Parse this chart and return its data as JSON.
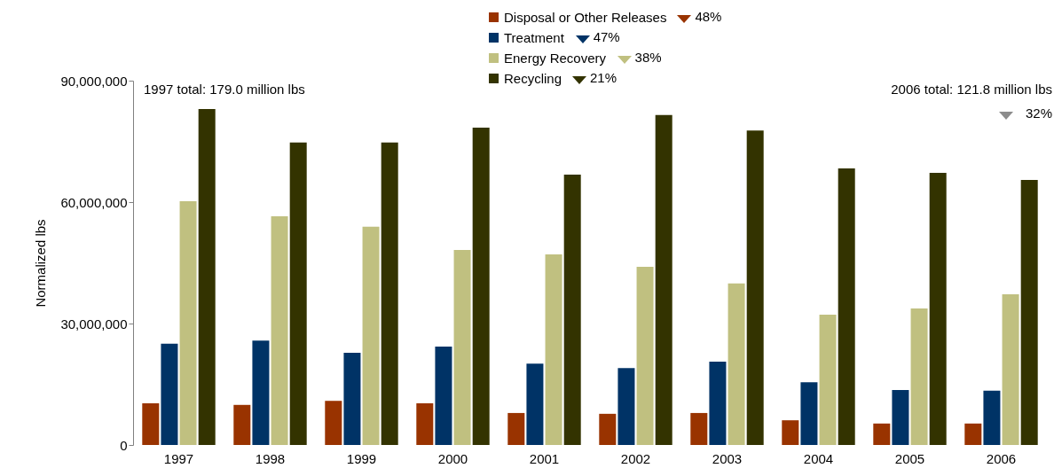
{
  "chart_data": {
    "type": "bar",
    "ylabel": "Normalized lbs",
    "categories": [
      "1997",
      "1998",
      "1999",
      "2000",
      "2001",
      "2002",
      "2003",
      "2004",
      "2005",
      "2006"
    ],
    "series": [
      {
        "name": "Disposal or Other Releases",
        "color": "#993300",
        "values": [
          10300000,
          9900000,
          10900000,
          10300000,
          7900000,
          7700000,
          7900000,
          6100000,
          5300000,
          5300000
        ]
      },
      {
        "name": "Treatment",
        "color": "#003366",
        "values": [
          25000000,
          25800000,
          22800000,
          24300000,
          20100000,
          19000000,
          20600000,
          15500000,
          13600000,
          13400000
        ]
      },
      {
        "name": "Energy Recovery",
        "color": "#c0c080",
        "values": [
          60200000,
          56500000,
          53900000,
          48200000,
          47100000,
          44000000,
          39900000,
          32200000,
          33700000,
          37200000
        ]
      },
      {
        "name": "Recycling",
        "color": "#333300",
        "values": [
          83000000,
          74700000,
          74700000,
          78400000,
          66800000,
          81500000,
          77700000,
          68300000,
          67200000,
          65500000
        ]
      }
    ],
    "ylim": [
      0,
      90000000
    ],
    "yticks": [
      0,
      {
        "value": 30000000,
        "label": "30,000,000"
      },
      {
        "value": 60000000,
        "label": "60,000,000"
      },
      {
        "value": 90000000,
        "label": "90,000,000"
      }
    ],
    "grid": false,
    "legend": "top",
    "annotations": [
      "1997 total: 179.0 million lbs",
      "2006 total: 121.8 million lbs",
      "48%",
      "47%",
      "38%",
      "21%",
      "32%"
    ]
  }
}
